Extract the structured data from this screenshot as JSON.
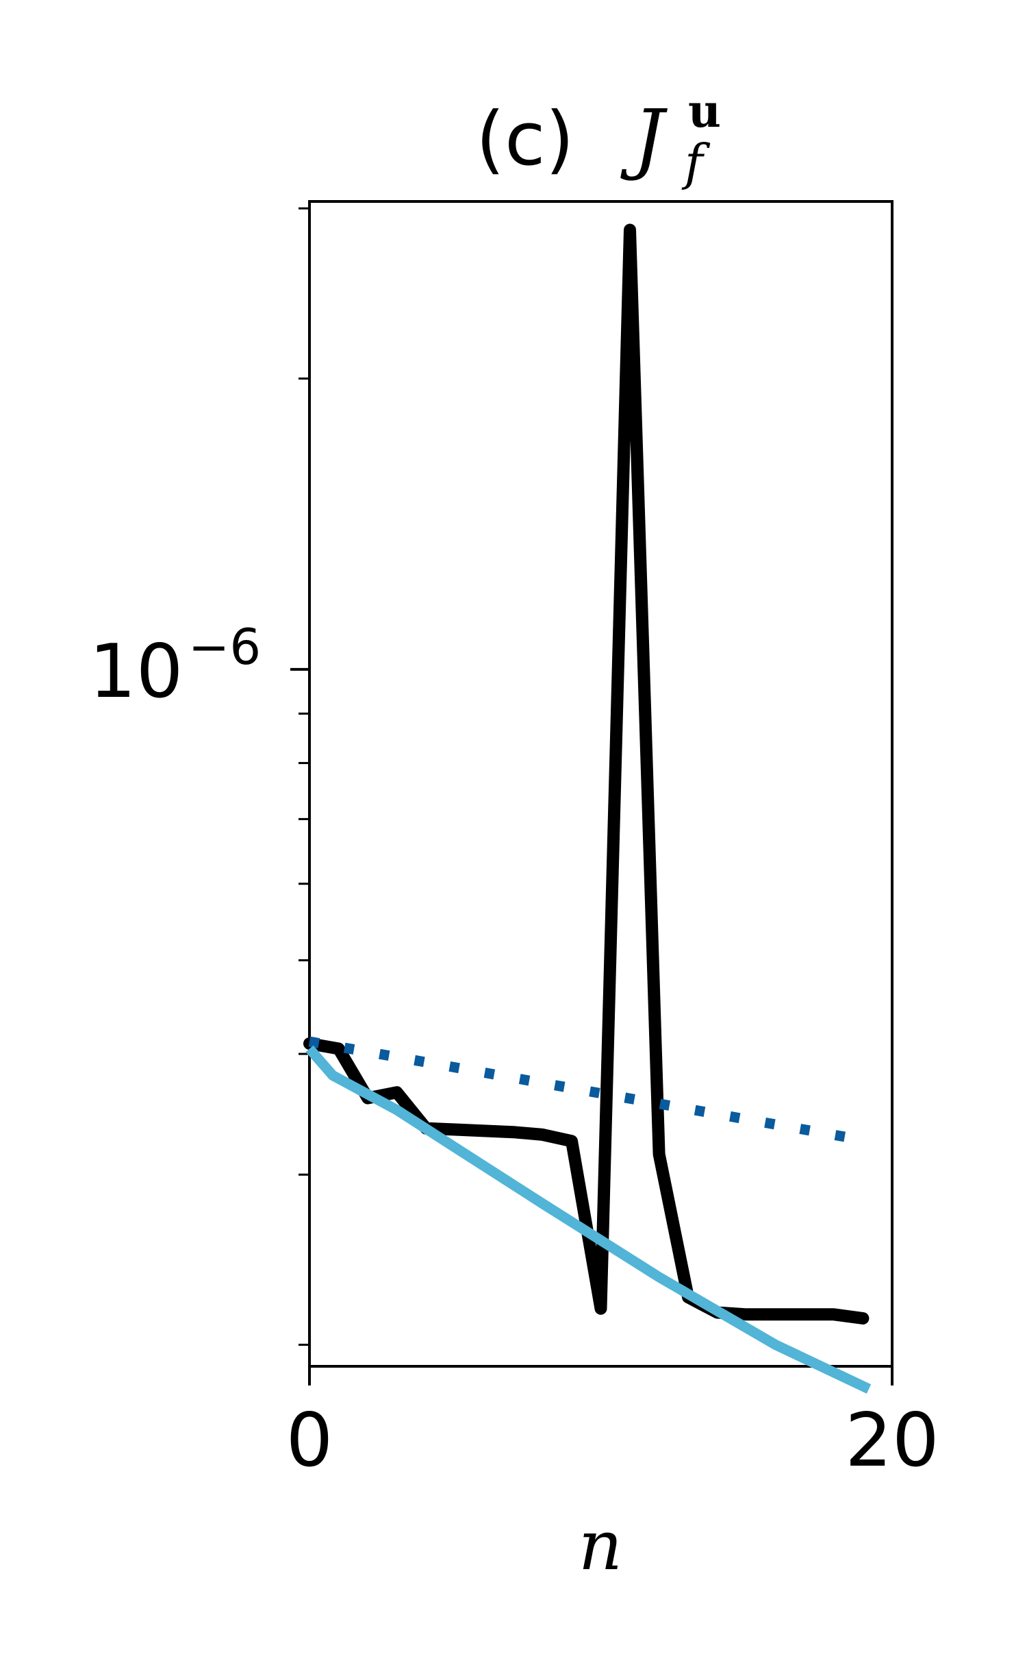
{
  "chart_data": {
    "type": "line",
    "title": {
      "prefix": "(c)",
      "symbol": "J",
      "superscript": "u",
      "subscript": "f"
    },
    "xlabel": "n",
    "ylabel": "",
    "xlim": [
      0,
      20
    ],
    "ylim": [
      1.9e-07,
      3.05e-06
    ],
    "yscale": "log",
    "grid": false,
    "legend": "none",
    "x_ticks": [
      {
        "value": 0,
        "label": "0"
      },
      {
        "value": 20,
        "label": "20"
      }
    ],
    "y_major_ticks": [
      {
        "value": 1e-06,
        "base": "10",
        "exponent": "−6"
      }
    ],
    "y_minor_ticks": [
      2e-07,
      3e-07,
      4e-07,
      5e-07,
      6e-07,
      7e-07,
      8e-07,
      9e-07,
      2e-06,
      3e-06
    ],
    "series": [
      {
        "color": "#000000",
        "style": "solid",
        "x": [
          0,
          1,
          2,
          3,
          4,
          5,
          6,
          7,
          8,
          9,
          10,
          11,
          12,
          13,
          14,
          15,
          16,
          17,
          18,
          19
        ],
        "values": [
          4.1e-07,
          4.05e-07,
          3.6e-07,
          3.65e-07,
          3.35e-07,
          3.34e-07,
          3.33e-07,
          3.32e-07,
          3.3e-07,
          3.25e-07,
          2.18e-07,
          2.85e-06,
          3.15e-07,
          2.24e-07,
          2.16e-07,
          2.15e-07,
          2.15e-07,
          2.15e-07,
          2.15e-07,
          2.13e-07
        ]
      },
      {
        "color": "#0a5a9e",
        "style": "dotted",
        "x": [
          0,
          19.2
        ],
        "values": [
          4.12e-07,
          3.25e-07
        ]
      },
      {
        "color": "#52b4d6",
        "style": "solid",
        "x": [
          0,
          0.8,
          3,
          5,
          8,
          12,
          16,
          19.2
        ],
        "values": [
          4.05e-07,
          3.8e-07,
          3.5e-07,
          3.2e-07,
          2.8e-07,
          2.35e-07,
          2e-07,
          1.8e-07
        ]
      }
    ]
  }
}
